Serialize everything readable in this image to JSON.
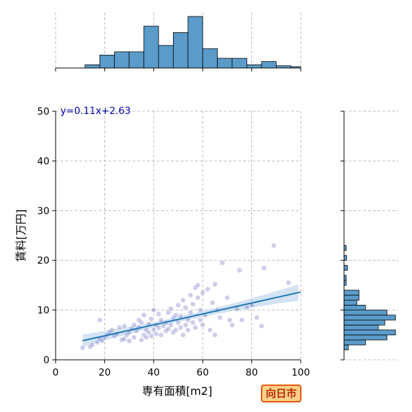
{
  "badge": "向日市",
  "colors": {
    "hist_fill": "#5a9bc9",
    "scatter_point": "#3b3bb0",
    "regression_line": "#1f77b4",
    "ci_band": "#a8c8e8",
    "annotation_text": "#0000aa",
    "grid": "#aaaaaa",
    "badge_fill": "#ffd08a",
    "badge_border": "#e8550a",
    "badge_text": "#b52a00"
  },
  "chart_data": {
    "type": "scatter",
    "xlabel": "専有面積[m2]",
    "ylabel": "賃料[万円]",
    "xlim": [
      0,
      100
    ],
    "ylim": [
      0,
      50
    ],
    "xticks": [
      "0",
      "20",
      "40",
      "60",
      "80",
      "100"
    ],
    "yticks": [
      "0",
      "10",
      "20",
      "30",
      "40",
      "50"
    ],
    "grid": true,
    "annotation": "y=0.11x+2.63",
    "regression": {
      "slope": 0.11,
      "intercept": 2.63,
      "x_range": [
        11,
        100
      ]
    },
    "points": [
      [
        11,
        2.4
      ],
      [
        14,
        2.6
      ],
      [
        15,
        3.0
      ],
      [
        17,
        3.5
      ],
      [
        18,
        4.2
      ],
      [
        18,
        8.0
      ],
      [
        19,
        3.8
      ],
      [
        20,
        4.5
      ],
      [
        21,
        5.0
      ],
      [
        22,
        5.6
      ],
      [
        23,
        6.0
      ],
      [
        24,
        4.8
      ],
      [
        25,
        5.2
      ],
      [
        26,
        6.5
      ],
      [
        27,
        4.0
      ],
      [
        28,
        4.2
      ],
      [
        28,
        6.8
      ],
      [
        29,
        5.0
      ],
      [
        30,
        3.8
      ],
      [
        30,
        5.5
      ],
      [
        31,
        6.2
      ],
      [
        32,
        4.5
      ],
      [
        32,
        7.0
      ],
      [
        33,
        5.8
      ],
      [
        34,
        6.5
      ],
      [
        34,
        8.0
      ],
      [
        35,
        4.0
      ],
      [
        35,
        7.5
      ],
      [
        36,
        5.0
      ],
      [
        36,
        9.0
      ],
      [
        37,
        6.0
      ],
      [
        37,
        4.5
      ],
      [
        38,
        7.2
      ],
      [
        38,
        5.5
      ],
      [
        39,
        4.8
      ],
      [
        39,
        8.2
      ],
      [
        40,
        6.0
      ],
      [
        40,
        10.0
      ],
      [
        41,
        5.2
      ],
      [
        41,
        7.0
      ],
      [
        42,
        9.2
      ],
      [
        42,
        6.4
      ],
      [
        43,
        8.0
      ],
      [
        43,
        5.0
      ],
      [
        44,
        6.8
      ],
      [
        45,
        7.5
      ],
      [
        45,
        5.8
      ],
      [
        46,
        9.5
      ],
      [
        46,
        6.2
      ],
      [
        47,
        7.0
      ],
      [
        47,
        10.3
      ],
      [
        48,
        5.5
      ],
      [
        48,
        8.5
      ],
      [
        49,
        6.0
      ],
      [
        49,
        9.0
      ],
      [
        50,
        7.5
      ],
      [
        50,
        11.0
      ],
      [
        51,
        6.5
      ],
      [
        51,
        8.8
      ],
      [
        52,
        12.0
      ],
      [
        52,
        5.0
      ],
      [
        53,
        7.0
      ],
      [
        53,
        10.5
      ],
      [
        54,
        8.0
      ],
      [
        54,
        6.0
      ],
      [
        55,
        9.5
      ],
      [
        55,
        13.0
      ],
      [
        56,
        7.5
      ],
      [
        56,
        11.2
      ],
      [
        57,
        14.5
      ],
      [
        57,
        6.5
      ],
      [
        58,
        12.5
      ],
      [
        58,
        15.0
      ],
      [
        59,
        8.0
      ],
      [
        59,
        10.0
      ],
      [
        60,
        13.5
      ],
      [
        60,
        7.0
      ],
      [
        61,
        9.0
      ],
      [
        62,
        14.2
      ],
      [
        63,
        6.0
      ],
      [
        64,
        11.5
      ],
      [
        65,
        5.0
      ],
      [
        65,
        15.2
      ],
      [
        66,
        10.0
      ],
      [
        67,
        8.5
      ],
      [
        68,
        19.5
      ],
      [
        70,
        12.5
      ],
      [
        71,
        8.0
      ],
      [
        72,
        7.0
      ],
      [
        74,
        10.2
      ],
      [
        75,
        18.0
      ],
      [
        76,
        8.0
      ],
      [
        78,
        10.5
      ],
      [
        80,
        11.0
      ],
      [
        82,
        8.5
      ],
      [
        84,
        6.8
      ],
      [
        85,
        18.5
      ],
      [
        89,
        23.0
      ],
      [
        95,
        15.5
      ]
    ],
    "top_histogram": {
      "bin_edges": [
        0,
        6,
        12,
        18,
        24,
        30,
        36,
        42,
        48,
        54,
        60,
        66,
        72,
        78,
        84,
        90,
        96,
        100
      ],
      "counts": [
        0,
        0,
        1,
        4,
        5,
        5,
        13,
        7,
        11,
        16,
        6,
        3,
        3,
        1,
        2,
        0.7,
        0.4
      ]
    },
    "right_histogram": {
      "bin_edges": [
        0,
        2.5,
        5,
        7.5,
        10,
        12.5,
        15,
        17.5,
        20,
        22.5,
        25
      ],
      "bins": [
        [
          2.0,
          3.0,
          1
        ],
        [
          3.0,
          4.0,
          5
        ],
        [
          4.0,
          5.0,
          10
        ],
        [
          5.0,
          6.0,
          12
        ],
        [
          6.0,
          7.0,
          8
        ],
        [
          7.0,
          8.0,
          9.5
        ],
        [
          8.0,
          9.0,
          12
        ],
        [
          9.0,
          10.0,
          10
        ],
        [
          10.0,
          11.0,
          5
        ],
        [
          11.0,
          12.0,
          3
        ],
        [
          12.0,
          13.0,
          3.5
        ],
        [
          13.0,
          14.0,
          3.5
        ],
        [
          15.0,
          16.0,
          0.5
        ],
        [
          16.0,
          17.0,
          0.5
        ],
        [
          18.0,
          19.0,
          0.8
        ],
        [
          20.0,
          21.0,
          0.6
        ],
        [
          22.0,
          23.0,
          0.5
        ]
      ]
    }
  }
}
